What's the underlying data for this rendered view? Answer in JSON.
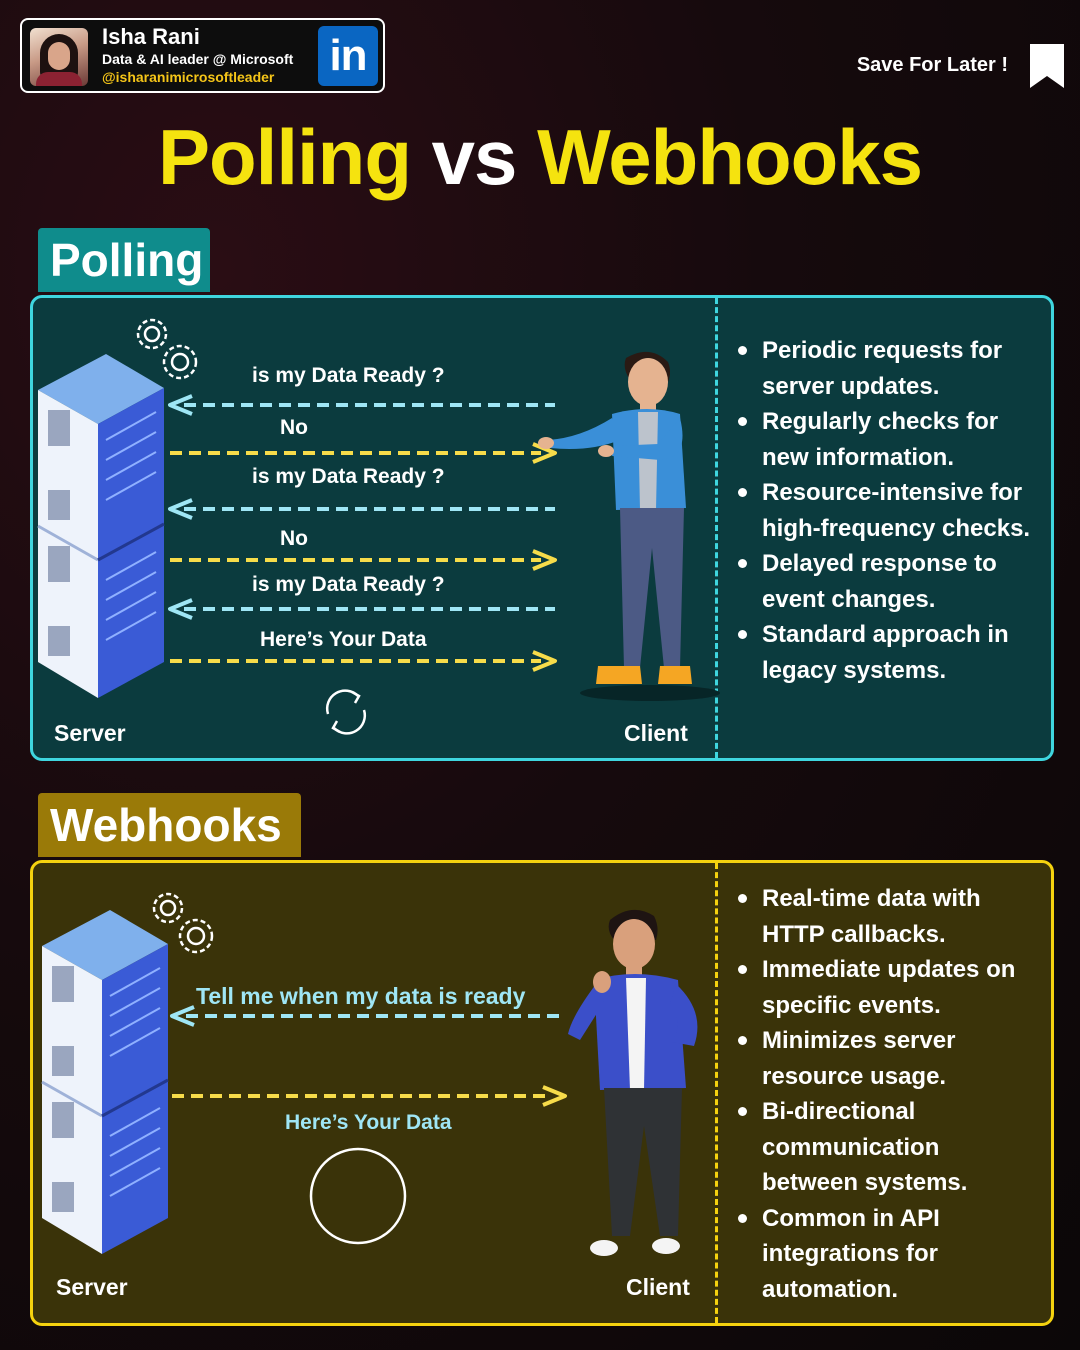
{
  "profile": {
    "name": "Isha Rani",
    "role": "Data & AI leader @ Microsoft",
    "handle": "@isharanimicrosoftleader",
    "linkedin_logo": "in"
  },
  "save_for_later": "Save For Later !",
  "title": {
    "part1": "Polling",
    "part2": "vs",
    "part3": "Webhooks"
  },
  "polling": {
    "tab_label": "Polling",
    "server_label": "Server",
    "client_label": "Client",
    "messages": [
      {
        "text": "is my Data Ready ?",
        "direction": "to-server"
      },
      {
        "text": "No",
        "direction": "to-client"
      },
      {
        "text": "is my Data Ready ?",
        "direction": "to-server"
      },
      {
        "text": "No",
        "direction": "to-client"
      },
      {
        "text": "is my Data Ready ?",
        "direction": "to-server"
      },
      {
        "text": "Here’s Your Data",
        "direction": "to-client"
      }
    ],
    "bullets": [
      "Periodic requests for server updates.",
      "Regularly checks for new information.",
      "Resource-intensive for high-frequency checks.",
      "Delayed response to event changes.",
      "Standard approach in legacy systems."
    ]
  },
  "webhooks": {
    "tab_label": "Webhooks",
    "server_label": "Server",
    "client_label": "Client",
    "messages": [
      {
        "text": "Tell me when my data is ready",
        "direction": "to-server"
      },
      {
        "text": "Here’s Your Data",
        "direction": "to-client"
      }
    ],
    "bullets": [
      "Real-time data with HTTP callbacks.",
      "Immediate updates on specific events.",
      "Minimizes server resource usage.",
      "Bi-directional communication between systems.",
      "Common in API integrations for automation."
    ]
  },
  "colors": {
    "title_yellow": "#f5e30f",
    "polling_accent": "#3fd6df",
    "polling_panel": "#0b3b3e",
    "polling_tab": "#0f8c8c",
    "webhooks_accent": "#f5d20f",
    "webhooks_panel": "#3a3309",
    "webhooks_tab": "#9a7a08",
    "arrow_blue": "#9fe6f5",
    "arrow_yellow": "#f7dc4a"
  },
  "icons": {
    "bookmark": "bookmark-icon",
    "gears": "gears-icon",
    "refresh": "refresh-cycle-icon",
    "loading": "loading-circle-icon",
    "server": "server-rack-illustration",
    "client": "person-illustration"
  }
}
